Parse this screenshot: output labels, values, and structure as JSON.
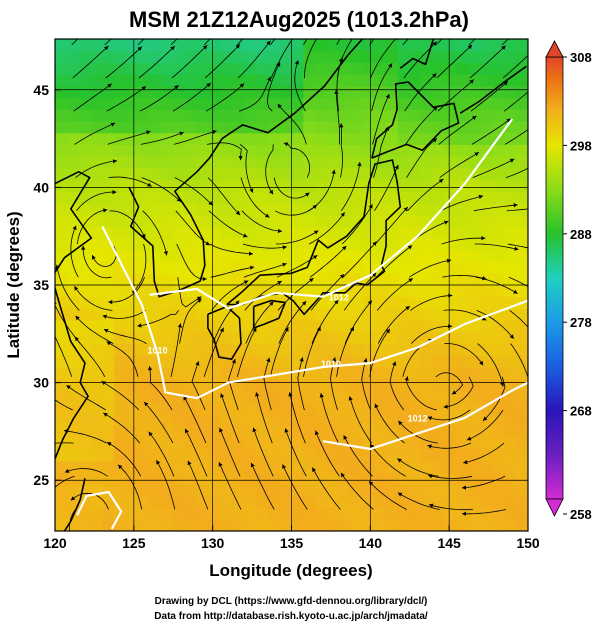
{
  "chart_data": {
    "type": "heatmap",
    "title": "MSM 21Z12Aug2025 (1013.2hPa)",
    "xlabel": "Longitude (degrees)",
    "ylabel": "Latitude  (degrees)",
    "xlim": [
      120,
      150
    ],
    "ylim": [
      22.4,
      47.6
    ],
    "x_ticks": [
      "120",
      "125",
      "130",
      "135",
      "140",
      "145",
      "150"
    ],
    "y_ticks": [
      "25",
      "30",
      "35",
      "40",
      "45"
    ],
    "grid": true,
    "colorbar": {
      "min": 258,
      "max": 308,
      "ticks": [
        "308",
        "298",
        "288",
        "278",
        "268",
        "258"
      ],
      "colors": [
        "#d42bd2",
        "#2b15b8",
        "#1c9be8",
        "#1fd0c0",
        "#27c22a",
        "#8bdc18",
        "#e6e600",
        "#f2ae1c",
        "#ec7314",
        "#e1442a"
      ]
    },
    "contours": [
      {
        "label": "1012",
        "lon": 138.0,
        "lat": 34.2
      },
      {
        "label": "1012",
        "lon": 143.0,
        "lat": 28.0
      },
      {
        "label": "1010",
        "lon": 137.5,
        "lat": 30.8
      },
      {
        "label": "1010",
        "lon": 126.5,
        "lat": 31.5
      }
    ]
  },
  "credits": {
    "line1": "Drawing by DCL (https://www.gfd-dennou.org/library/dcl/)",
    "line2": "Data from http://database.rish.kyoto-u.ac.jp/arch/jmadata/"
  }
}
